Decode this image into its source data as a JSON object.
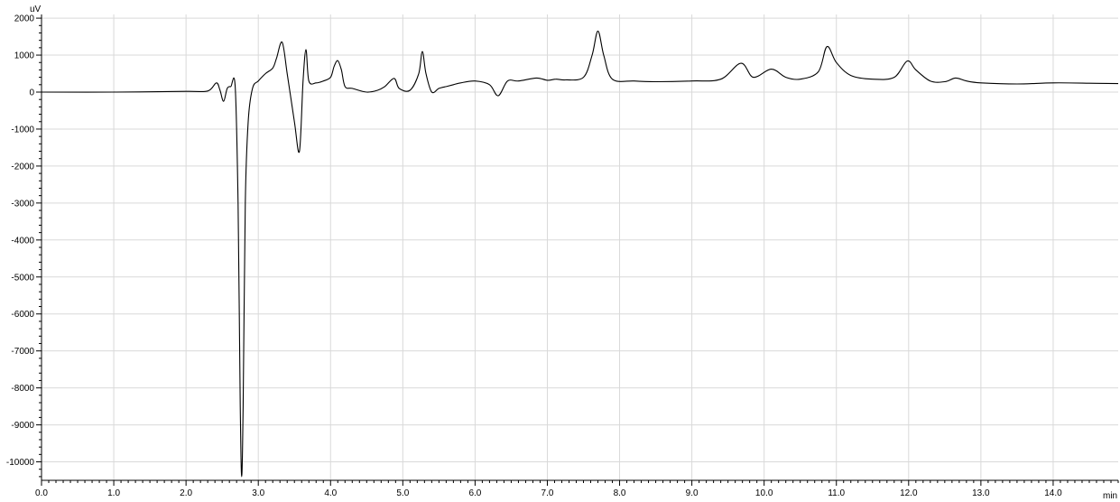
{
  "chart_data": {
    "type": "line",
    "title": "",
    "xlabel": "",
    "ylabel": "",
    "x_unit_label": "min",
    "y_unit_label": "uV",
    "xlim": [
      0,
      14.9
    ],
    "ylim": [
      -10500,
      2100
    ],
    "grid": true,
    "legend": "none",
    "x_ticks": [
      0,
      1,
      2,
      3,
      4,
      5,
      6,
      7,
      8,
      9,
      10,
      11,
      12,
      13,
      14
    ],
    "x_tick_labels": [
      "0.0",
      "1.0",
      "2.0",
      "3.0",
      "4.0",
      "5.0",
      "6.0",
      "7.0",
      "8.0",
      "9.0",
      "10.0",
      "11.0",
      "12.0",
      "13.0",
      "14.0"
    ],
    "y_ticks": [
      2000,
      1000,
      0,
      -1000,
      -2000,
      -3000,
      -4000,
      -5000,
      -6000,
      -7000,
      -8000,
      -9000,
      -10000
    ],
    "y_tick_labels": [
      "2000",
      "1000",
      "0",
      "-1000",
      "-2000",
      "-3000",
      "-4000",
      "-5000",
      "-6000",
      "-7000",
      "-8000",
      "-9000",
      "-10000"
    ],
    "colors": {
      "line": "#000000",
      "grid": "#d9d9d9",
      "axis": "#000000"
    },
    "series": [
      {
        "x": [
          0,
          1,
          2,
          2.3,
          2.42,
          2.47,
          2.52,
          2.57,
          2.62,
          2.68,
          2.72,
          2.75,
          2.77,
          2.79,
          2.82,
          2.86,
          2.92,
          3.0,
          3.1,
          3.2,
          3.25,
          3.33,
          3.4,
          3.5,
          3.57,
          3.62,
          3.66,
          3.7,
          3.8,
          3.9,
          4.0,
          4.05,
          4.1,
          4.15,
          4.2,
          4.3,
          4.5,
          4.65,
          4.75,
          4.88,
          4.95,
          5.1,
          5.22,
          5.27,
          5.32,
          5.4,
          5.5,
          5.6,
          5.7,
          5.8,
          6.0,
          6.2,
          6.32,
          6.45,
          6.6,
          6.85,
          7.0,
          7.12,
          7.25,
          7.5,
          7.62,
          7.7,
          7.78,
          7.9,
          8.2,
          8.5,
          9.0,
          9.4,
          9.68,
          9.85,
          10.1,
          10.3,
          10.5,
          10.75,
          10.87,
          11.0,
          11.2,
          11.5,
          11.8,
          11.98,
          12.1,
          12.3,
          12.5,
          12.65,
          12.8,
          13.0,
          13.5,
          14.0,
          14.5,
          14.9
        ],
        "y": [
          0,
          0,
          20,
          30,
          250,
          50,
          -250,
          100,
          150,
          150,
          -3000,
          -8500,
          -10400,
          -8500,
          -3000,
          -800,
          100,
          300,
          500,
          650,
          900,
          1350,
          500,
          -800,
          -1600,
          300,
          1150,
          300,
          250,
          300,
          400,
          700,
          850,
          600,
          150,
          100,
          0,
          50,
          150,
          370,
          100,
          50,
          500,
          1100,
          500,
          0,
          100,
          150,
          200,
          250,
          300,
          200,
          -100,
          300,
          300,
          380,
          320,
          350,
          330,
          400,
          1000,
          1650,
          1000,
          350,
          300,
          280,
          300,
          350,
          780,
          400,
          620,
          400,
          350,
          550,
          1230,
          800,
          450,
          350,
          400,
          840,
          600,
          300,
          280,
          380,
          300,
          250,
          220,
          250,
          240,
          230
        ]
      }
    ]
  }
}
